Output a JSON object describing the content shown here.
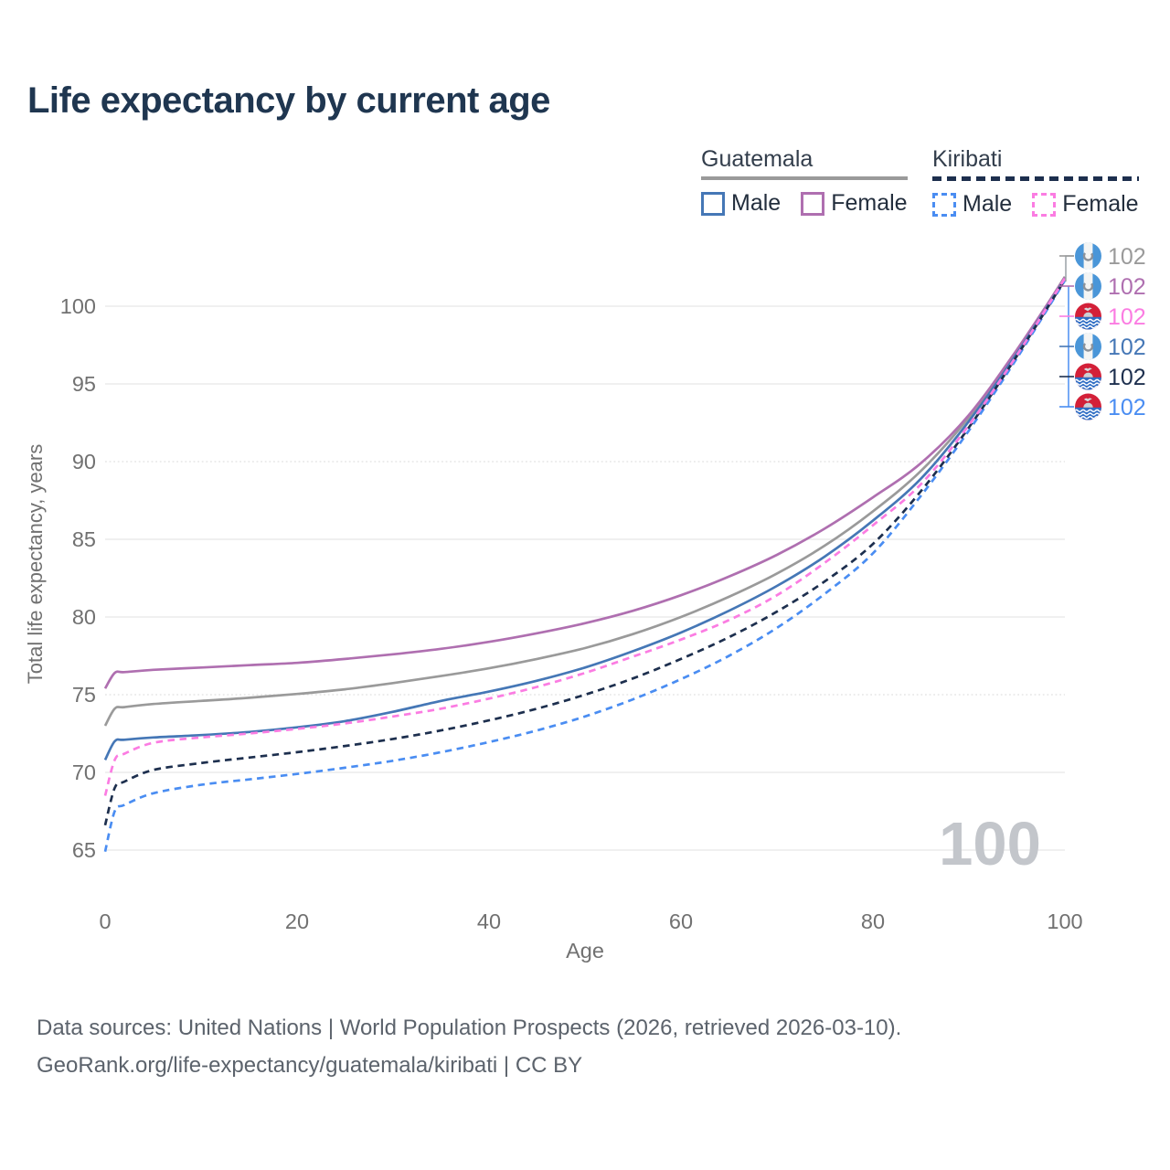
{
  "title": "Life expectancy by current age",
  "legend": {
    "groups": [
      {
        "name": "Guatemala",
        "underline_style": "solid",
        "underline_color": "#9a9a9a",
        "items": [
          {
            "label": "Male",
            "color": "#4577b6",
            "dashed": false
          },
          {
            "label": "Female",
            "color": "#af6fb0",
            "dashed": false
          }
        ]
      },
      {
        "name": "Kiribati",
        "underline_style": "dashed",
        "underline_color": "#1d2f4e",
        "items": [
          {
            "label": "Male",
            "color": "#4a8df2",
            "dashed": true
          },
          {
            "label": "Female",
            "color": "#fb7ce2",
            "dashed": true
          }
        ]
      }
    ]
  },
  "chart_data": {
    "type": "line",
    "title": "Life expectancy by current age",
    "xlabel": "Age",
    "ylabel": "Total life expectancy, years",
    "x_ticks": [
      0,
      20,
      40,
      60,
      80,
      100
    ],
    "y_ticks": [
      65,
      70,
      75,
      80,
      85,
      90,
      95,
      100
    ],
    "dotted_gridlines": [
      75,
      90
    ],
    "xlim": [
      0,
      100
    ],
    "ylim": [
      63,
      103
    ],
    "grid": "horizontal",
    "legend_position": "top-right",
    "watermark": "100",
    "ages": [
      0,
      1,
      2,
      5,
      10,
      15,
      20,
      25,
      30,
      35,
      40,
      45,
      50,
      55,
      60,
      65,
      70,
      75,
      80,
      85,
      90,
      95,
      100
    ],
    "series": [
      {
        "id": "guatemala-female",
        "country": "Guatemala",
        "sex": "Female",
        "color": "#af6fb0",
        "dashed": false,
        "values": [
          75.4,
          76.4,
          76.45,
          76.6,
          76.75,
          76.9,
          77.05,
          77.3,
          77.6,
          77.95,
          78.4,
          78.95,
          79.6,
          80.4,
          81.4,
          82.6,
          84.0,
          85.7,
          87.7,
          89.9,
          93.0,
          97.2,
          101.85
        ]
      },
      {
        "id": "guatemala-both",
        "country": "Guatemala",
        "sex": "Both sexes",
        "color": "#9a9a9a",
        "dashed": false,
        "values": [
          73.0,
          74.1,
          74.2,
          74.4,
          74.6,
          74.8,
          75.05,
          75.35,
          75.75,
          76.2,
          76.7,
          77.3,
          78.0,
          78.9,
          80.0,
          81.3,
          82.8,
          84.6,
          86.8,
          89.4,
          92.85,
          97.1,
          101.9
        ]
      },
      {
        "id": "guatemala-male",
        "country": "Guatemala",
        "sex": "Male",
        "color": "#4577b6",
        "dashed": false,
        "values": [
          70.8,
          72.0,
          72.1,
          72.25,
          72.4,
          72.6,
          72.9,
          73.3,
          73.9,
          74.6,
          75.2,
          75.9,
          76.75,
          77.8,
          79.0,
          80.4,
          82.0,
          83.9,
          86.2,
          88.9,
          92.6,
          96.95,
          101.75
        ]
      },
      {
        "id": "kiribati-male",
        "country": "Kiribati",
        "sex": "Male",
        "color": "#4a8df2",
        "dashed": true,
        "values": [
          64.9,
          67.5,
          67.9,
          68.65,
          69.2,
          69.55,
          69.9,
          70.3,
          70.75,
          71.3,
          71.95,
          72.7,
          73.6,
          74.7,
          76.0,
          77.5,
          79.3,
          81.5,
          84.1,
          87.8,
          92.0,
          96.65,
          101.65
        ]
      },
      {
        "id": "kiribati-both",
        "country": "Kiribati",
        "sex": "Both sexes",
        "color": "#1d2f4e",
        "dashed": true,
        "values": [
          66.6,
          69.0,
          69.4,
          70.15,
          70.6,
          70.95,
          71.3,
          71.7,
          72.15,
          72.7,
          73.35,
          74.1,
          75.0,
          76.05,
          77.3,
          78.7,
          80.35,
          82.3,
          84.7,
          88.1,
          92.2,
          96.8,
          101.7
        ]
      },
      {
        "id": "kiribati-female",
        "country": "Kiribati",
        "sex": "Female",
        "color": "#fb7ce2",
        "dashed": true,
        "values": [
          68.5,
          70.8,
          71.2,
          71.9,
          72.25,
          72.5,
          72.8,
          73.15,
          73.6,
          74.1,
          74.75,
          75.5,
          76.4,
          77.45,
          78.55,
          79.8,
          81.4,
          83.5,
          85.9,
          88.55,
          92.35,
          96.85,
          101.8
        ]
      }
    ],
    "end_labels": [
      {
        "series": "guatemala-both",
        "flag": "guatemala",
        "label": "102",
        "color": "#9a9a9a"
      },
      {
        "series": "guatemala-female",
        "flag": "guatemala",
        "label": "102",
        "color": "#af6fb0"
      },
      {
        "series": "kiribati-female",
        "flag": "kiribati",
        "label": "102",
        "color": "#fb7ce2"
      },
      {
        "series": "guatemala-male",
        "flag": "guatemala",
        "label": "102",
        "color": "#4577b6"
      },
      {
        "series": "kiribati-both",
        "flag": "kiribati",
        "label": "102",
        "color": "#1d2f4e"
      },
      {
        "series": "kiribati-male",
        "flag": "kiribati",
        "label": "102",
        "color": "#4a8df2"
      }
    ]
  },
  "footer": {
    "line1": "Data sources: United Nations | World Population Prospects (2026, retrieved 2026-03-10).",
    "line2": "GeoRank.org/life-expectancy/guatemala/kiribati | CC BY"
  },
  "colors": {
    "title": "#1f3650",
    "axis_text": "#717171",
    "gridline": "#ececec",
    "gridline_dotted": "#e0e0e0",
    "watermark": "#c3c6cb",
    "footer_text": "#5c636c"
  }
}
